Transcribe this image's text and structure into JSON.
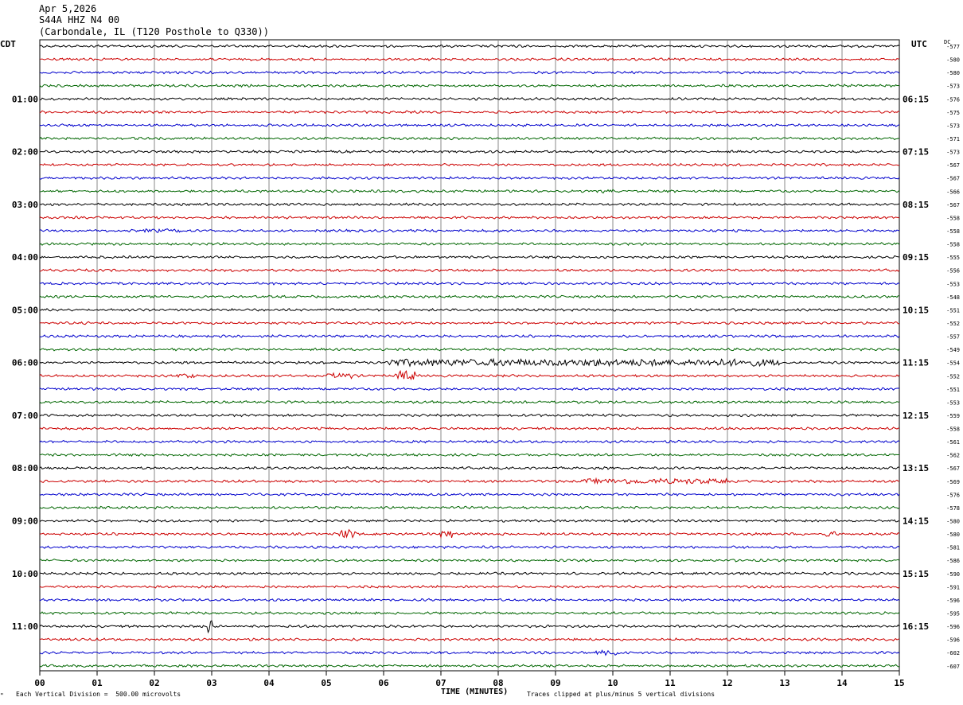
{
  "header": {
    "date": "Apr 5,2026",
    "station": "S44A HHZ N4 00",
    "location": "(Carbondale, IL (T120 Posthole to Q330))"
  },
  "left_tz": "CDT",
  "right_tz": "UTC",
  "dc_label": "DC",
  "footer": {
    "scale_note": "Each Vertical Division =  500.00 microvolts",
    "xlabel": "TIME (MINUTES)",
    "clip_note": "Traces clipped at plus/minus 5 vertical divisions",
    "corner_mark": "\""
  },
  "colors": {
    "trace_cycle": [
      "#000000",
      "#cc0000",
      "#0000cc",
      "#006600"
    ],
    "grid": "#888888",
    "frame": "#000000"
  },
  "chart_data": {
    "type": "line",
    "chart_kind": "seismogram helicorder",
    "x_ticks": [
      "00",
      "01",
      "02",
      "03",
      "04",
      "05",
      "06",
      "07",
      "08",
      "09",
      "10",
      "11",
      "12",
      "13",
      "14",
      "15"
    ],
    "xlim": [
      0,
      15
    ],
    "left_hour_labels": [
      "01:00",
      "02:00",
      "03:00",
      "04:00",
      "05:00",
      "06:00",
      "07:00",
      "08:00",
      "09:00",
      "10:00",
      "11:00"
    ],
    "right_hour_labels": [
      "06:15",
      "07:15",
      "08:15",
      "09:15",
      "10:15",
      "11:15",
      "12:15",
      "13:15",
      "14:15",
      "15:15",
      "16:15"
    ],
    "hour_label_rows": [
      4,
      8,
      12,
      16,
      20,
      24,
      28,
      32,
      36,
      40,
      44
    ],
    "dc_offsets": [
      -577,
      -580,
      -580,
      -573,
      -576,
      -575,
      -573,
      -571,
      -573,
      -567,
      -567,
      -566,
      -567,
      -558,
      -558,
      -558,
      -555,
      -556,
      -553,
      -548,
      -551,
      -552,
      -557,
      -549,
      -554,
      -552,
      -551,
      -553,
      -559,
      -558,
      -561,
      -562,
      -567,
      -569,
      -576,
      -578,
      -580,
      -580,
      -581,
      -586,
      -590,
      -591,
      -596,
      -595,
      -596,
      -596,
      -602,
      -607
    ],
    "events": [
      {
        "row": 11,
        "x_start": 9.8,
        "x_end": 10.0,
        "amp": 2
      },
      {
        "row": 14,
        "x_start": 1.8,
        "x_end": 2.5,
        "amp": 2
      },
      {
        "row": 24,
        "x_start": 6.0,
        "x_end": 12.9,
        "amp": 4
      },
      {
        "row": 25,
        "x_start": 2.4,
        "x_end": 2.7,
        "amp": 3
      },
      {
        "row": 25,
        "x_start": 5.0,
        "x_end": 5.5,
        "amp": 3
      },
      {
        "row": 25,
        "x_start": 6.2,
        "x_end": 6.6,
        "amp": 6
      },
      {
        "row": 33,
        "x_start": 9.5,
        "x_end": 12.0,
        "amp": 3
      },
      {
        "row": 37,
        "x_start": 5.2,
        "x_end": 5.5,
        "amp": 5
      },
      {
        "row": 37,
        "x_start": 7.0,
        "x_end": 7.2,
        "amp": 5
      },
      {
        "row": 37,
        "x_start": 13.7,
        "x_end": 13.9,
        "amp": 4
      },
      {
        "row": 44,
        "x_start": 2.9,
        "x_end": 3.0,
        "amp": 11
      },
      {
        "row": 46,
        "x_start": 9.7,
        "x_end": 10.2,
        "amp": 3
      }
    ]
  }
}
